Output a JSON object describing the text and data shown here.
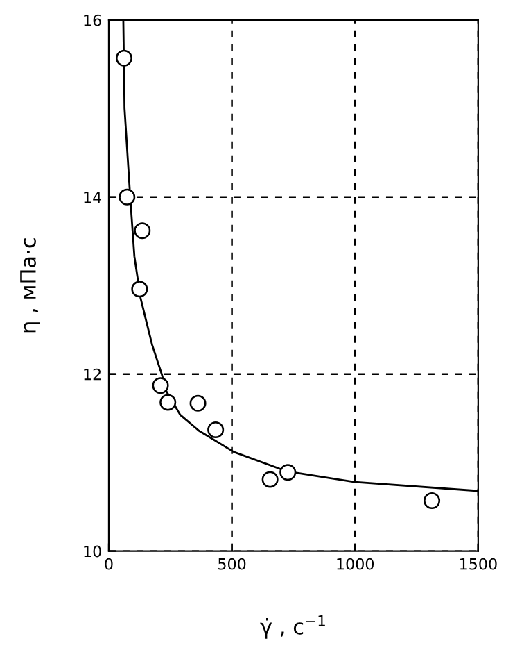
{
  "chart_data": {
    "type": "scatter",
    "xlabel": "γ̇ , с$^{−1}$",
    "ylabel": "η , мПа·с",
    "xlim": [
      0,
      1500
    ],
    "ylim": [
      10,
      16
    ],
    "xticks": [
      0,
      500,
      1000,
      1500
    ],
    "yticks": [
      10,
      12,
      14,
      16
    ],
    "grid": true,
    "series": [
      {
        "marker": "circle",
        "color": "#000000",
        "x": [
          62,
          74,
          136,
          125,
          210,
          240,
          362,
          434,
          655,
          727,
          1312
        ],
        "values": [
          15.57,
          14.0,
          13.62,
          12.96,
          11.87,
          11.68,
          11.67,
          11.37,
          10.81,
          10.89,
          10.57
        ]
      },
      {
        "type": "line",
        "marker": "none",
        "line_style": "solid",
        "color": "#000000",
        "x": [
          59,
          64,
          87,
          104,
          129,
          176,
          215,
          233,
          290,
          366,
          508,
          725,
          1000,
          1500
        ],
        "values": [
          16,
          15,
          14,
          13.33,
          12.86,
          12.33,
          12,
          11.81,
          11.54,
          11.36,
          11.12,
          10.9,
          10.78,
          10.68
        ]
      }
    ]
  }
}
